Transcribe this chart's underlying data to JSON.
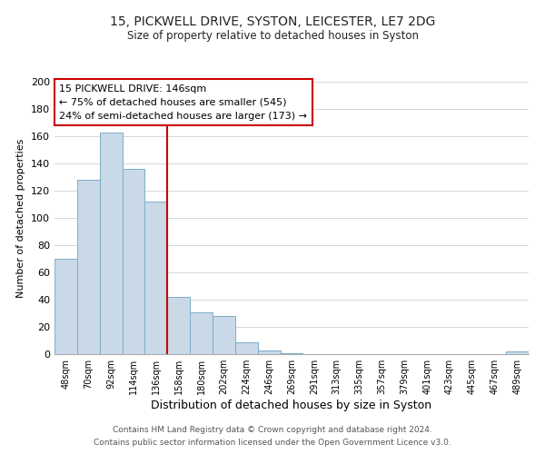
{
  "title": "15, PICKWELL DRIVE, SYSTON, LEICESTER, LE7 2DG",
  "subtitle": "Size of property relative to detached houses in Syston",
  "xlabel": "Distribution of detached houses by size in Syston",
  "ylabel": "Number of detached properties",
  "bin_labels": [
    "48sqm",
    "70sqm",
    "92sqm",
    "114sqm",
    "136sqm",
    "158sqm",
    "180sqm",
    "202sqm",
    "224sqm",
    "246sqm",
    "269sqm",
    "291sqm",
    "313sqm",
    "335sqm",
    "357sqm",
    "379sqm",
    "401sqm",
    "423sqm",
    "445sqm",
    "467sqm",
    "489sqm"
  ],
  "bar_heights": [
    70,
    128,
    163,
    136,
    112,
    42,
    31,
    28,
    9,
    3,
    1,
    0,
    0,
    0,
    0,
    0,
    0,
    0,
    0,
    0,
    2
  ],
  "bar_color": "#c9d9e8",
  "bar_edge_color": "#7aaec8",
  "vline_x_index": 4.5,
  "vline_color": "#cc0000",
  "annotation_title": "15 PICKWELL DRIVE: 146sqm",
  "annotation_line1": "← 75% of detached houses are smaller (545)",
  "annotation_line2": "24% of semi-detached houses are larger (173) →",
  "annotation_box_color": "#cc0000",
  "ylim": [
    0,
    200
  ],
  "yticks": [
    0,
    20,
    40,
    60,
    80,
    100,
    120,
    140,
    160,
    180,
    200
  ],
  "footer1": "Contains HM Land Registry data © Crown copyright and database right 2024.",
  "footer2": "Contains public sector information licensed under the Open Government Licence v3.0.",
  "background_color": "#ffffff",
  "grid_color": "#d0d8e0",
  "title_fontsize": 10,
  "subtitle_fontsize": 8.5,
  "ylabel_fontsize": 8,
  "xlabel_fontsize": 9,
  "tick_fontsize": 7,
  "footer_fontsize": 6.5
}
